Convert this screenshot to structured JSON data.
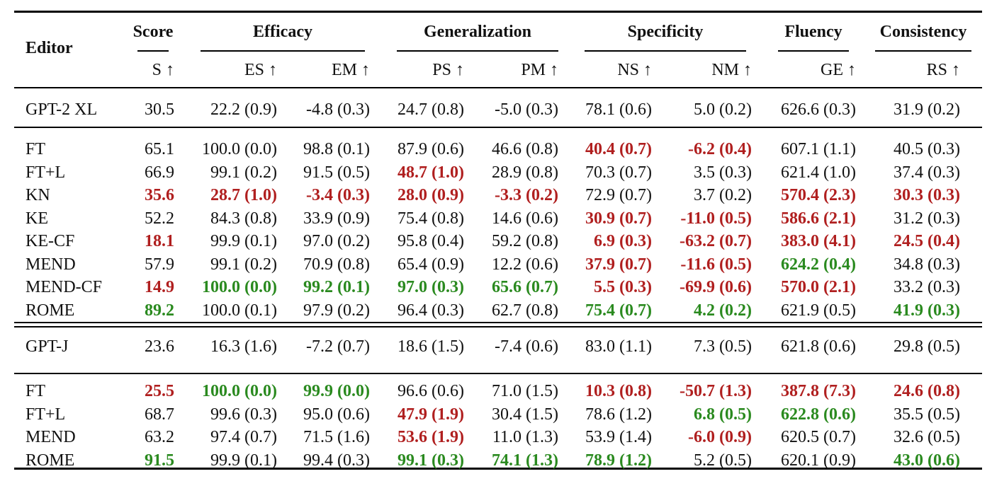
{
  "colors": {
    "red": "#b01f1f",
    "green": "#2a8a1f"
  },
  "header": {
    "editor": "Editor",
    "groups": [
      "Score",
      "Efficacy",
      "Generalization",
      "Specificity",
      "Fluency",
      "Consistency"
    ],
    "metrics": [
      "S ↑",
      "ES ↑",
      "EM ↑",
      "PS ↑",
      "PM ↑",
      "NS ↑",
      "NM ↑",
      "GE ↑",
      "RS ↑"
    ]
  },
  "sections": [
    {
      "rows": [
        {
          "name": "GPT-2 XL",
          "cells": [
            {
              "t": "30.5"
            },
            {
              "t": "22.2 (0.9)"
            },
            {
              "t": "-4.8 (0.3)"
            },
            {
              "t": "24.7 (0.8)"
            },
            {
              "t": "-5.0 (0.3)"
            },
            {
              "t": "78.1 (0.6)"
            },
            {
              "t": "5.0 (0.2)"
            },
            {
              "t": "626.6 (0.3)"
            },
            {
              "t": "31.9 (0.2)"
            }
          ]
        }
      ]
    },
    {
      "rows": [
        {
          "name": "FT",
          "cells": [
            {
              "t": "65.1"
            },
            {
              "t": "100.0 (0.0)"
            },
            {
              "t": "98.8 (0.1)"
            },
            {
              "t": "87.9 (0.6)"
            },
            {
              "t": "46.6 (0.8)"
            },
            {
              "t": "40.4 (0.7)",
              "c": "red"
            },
            {
              "t": "-6.2 (0.4)",
              "c": "red"
            },
            {
              "t": "607.1 (1.1)"
            },
            {
              "t": "40.5 (0.3)"
            }
          ]
        },
        {
          "name": "FT+L",
          "cells": [
            {
              "t": "66.9"
            },
            {
              "t": "99.1 (0.2)"
            },
            {
              "t": "91.5 (0.5)"
            },
            {
              "t": "48.7 (1.0)",
              "c": "red"
            },
            {
              "t": "28.9 (0.8)"
            },
            {
              "t": "70.3 (0.7)"
            },
            {
              "t": "3.5 (0.3)"
            },
            {
              "t": "621.4 (1.0)"
            },
            {
              "t": "37.4 (0.3)"
            }
          ]
        },
        {
          "name": "KN",
          "cells": [
            {
              "t": "35.6",
              "c": "red"
            },
            {
              "t": "28.7 (1.0)",
              "c": "red"
            },
            {
              "t": "-3.4 (0.3)",
              "c": "red"
            },
            {
              "t": "28.0 (0.9)",
              "c": "red"
            },
            {
              "t": "-3.3 (0.2)",
              "c": "red"
            },
            {
              "t": "72.9 (0.7)"
            },
            {
              "t": "3.7 (0.2)"
            },
            {
              "t": "570.4 (2.3)",
              "c": "red"
            },
            {
              "t": "30.3 (0.3)",
              "c": "red"
            }
          ]
        },
        {
          "name": "KE",
          "cells": [
            {
              "t": "52.2"
            },
            {
              "t": "84.3 (0.8)"
            },
            {
              "t": "33.9 (0.9)"
            },
            {
              "t": "75.4 (0.8)"
            },
            {
              "t": "14.6 (0.6)"
            },
            {
              "t": "30.9 (0.7)",
              "c": "red"
            },
            {
              "t": "-11.0 (0.5)",
              "c": "red"
            },
            {
              "t": "586.6 (2.1)",
              "c": "red"
            },
            {
              "t": "31.2 (0.3)"
            }
          ]
        },
        {
          "name": "KE-CF",
          "cells": [
            {
              "t": "18.1",
              "c": "red"
            },
            {
              "t": "99.9 (0.1)"
            },
            {
              "t": "97.0 (0.2)"
            },
            {
              "t": "95.8 (0.4)"
            },
            {
              "t": "59.2 (0.8)"
            },
            {
              "t": "6.9 (0.3)",
              "c": "red"
            },
            {
              "t": "-63.2 (0.7)",
              "c": "red"
            },
            {
              "t": "383.0 (4.1)",
              "c": "red"
            },
            {
              "t": "24.5 (0.4)",
              "c": "red"
            }
          ]
        },
        {
          "name": "MEND",
          "cells": [
            {
              "t": "57.9"
            },
            {
              "t": "99.1 (0.2)"
            },
            {
              "t": "70.9 (0.8)"
            },
            {
              "t": "65.4 (0.9)"
            },
            {
              "t": "12.2 (0.6)"
            },
            {
              "t": "37.9 (0.7)",
              "c": "red"
            },
            {
              "t": "-11.6 (0.5)",
              "c": "red"
            },
            {
              "t": "624.2 (0.4)",
              "c": "green"
            },
            {
              "t": "34.8 (0.3)"
            }
          ]
        },
        {
          "name": "MEND-CF",
          "cells": [
            {
              "t": "14.9",
              "c": "red"
            },
            {
              "t": "100.0 (0.0)",
              "c": "green"
            },
            {
              "t": "99.2 (0.1)",
              "c": "green"
            },
            {
              "t": "97.0 (0.3)",
              "c": "green"
            },
            {
              "t": "65.6 (0.7)",
              "c": "green"
            },
            {
              "t": "5.5 (0.3)",
              "c": "red"
            },
            {
              "t": "-69.9 (0.6)",
              "c": "red"
            },
            {
              "t": "570.0 (2.1)",
              "c": "red"
            },
            {
              "t": "33.2 (0.3)"
            }
          ]
        },
        {
          "name": "ROME",
          "cells": [
            {
              "t": "89.2",
              "c": "green"
            },
            {
              "t": "100.0 (0.1)"
            },
            {
              "t": "97.9 (0.2)"
            },
            {
              "t": "96.4 (0.3)"
            },
            {
              "t": "62.7 (0.8)"
            },
            {
              "t": "75.4 (0.7)",
              "c": "green"
            },
            {
              "t": "4.2 (0.2)",
              "c": "green"
            },
            {
              "t": "621.9 (0.5)"
            },
            {
              "t": "41.9 (0.3)",
              "c": "green"
            }
          ]
        }
      ]
    },
    {
      "rows": [
        {
          "name": "GPT-J",
          "cells": [
            {
              "t": "23.6"
            },
            {
              "t": "16.3 (1.6)"
            },
            {
              "t": "-7.2 (0.7)"
            },
            {
              "t": "18.6 (1.5)"
            },
            {
              "t": "-7.4 (0.6)"
            },
            {
              "t": "83.0 (1.1)"
            },
            {
              "t": "7.3 (0.5)"
            },
            {
              "t": "621.8 (0.6)"
            },
            {
              "t": "29.8 (0.5)"
            }
          ]
        }
      ]
    },
    {
      "rows": [
        {
          "name": "FT",
          "cells": [
            {
              "t": "25.5",
              "c": "red"
            },
            {
              "t": "100.0 (0.0)",
              "c": "green"
            },
            {
              "t": "99.9 (0.0)",
              "c": "green"
            },
            {
              "t": "96.6 (0.6)"
            },
            {
              "t": "71.0 (1.5)"
            },
            {
              "t": "10.3 (0.8)",
              "c": "red"
            },
            {
              "t": "-50.7 (1.3)",
              "c": "red"
            },
            {
              "t": "387.8 (7.3)",
              "c": "red"
            },
            {
              "t": "24.6 (0.8)",
              "c": "red"
            }
          ]
        },
        {
          "name": "FT+L",
          "cells": [
            {
              "t": "68.7"
            },
            {
              "t": "99.6 (0.3)"
            },
            {
              "t": "95.0 (0.6)"
            },
            {
              "t": "47.9 (1.9)",
              "c": "red"
            },
            {
              "t": "30.4 (1.5)"
            },
            {
              "t": "78.6 (1.2)"
            },
            {
              "t": "6.8 (0.5)",
              "c": "green"
            },
            {
              "t": "622.8 (0.6)",
              "c": "green"
            },
            {
              "t": "35.5 (0.5)"
            }
          ]
        },
        {
          "name": "MEND",
          "cells": [
            {
              "t": "63.2"
            },
            {
              "t": "97.4 (0.7)"
            },
            {
              "t": "71.5 (1.6)"
            },
            {
              "t": "53.6 (1.9)",
              "c": "red"
            },
            {
              "t": "11.0 (1.3)"
            },
            {
              "t": "53.9 (1.4)"
            },
            {
              "t": "-6.0 (0.9)",
              "c": "red"
            },
            {
              "t": "620.5 (0.7)"
            },
            {
              "t": "32.6 (0.5)"
            }
          ]
        },
        {
          "name": "ROME",
          "cells": [
            {
              "t": "91.5",
              "c": "green"
            },
            {
              "t": "99.9 (0.1)"
            },
            {
              "t": "99.4 (0.3)"
            },
            {
              "t": "99.1 (0.3)",
              "c": "green"
            },
            {
              "t": "74.1 (1.3)",
              "c": "green"
            },
            {
              "t": "78.9 (1.2)",
              "c": "green"
            },
            {
              "t": "5.2 (0.5)"
            },
            {
              "t": "620.1 (0.9)"
            },
            {
              "t": "43.0 (0.6)",
              "c": "green"
            }
          ]
        }
      ]
    }
  ]
}
